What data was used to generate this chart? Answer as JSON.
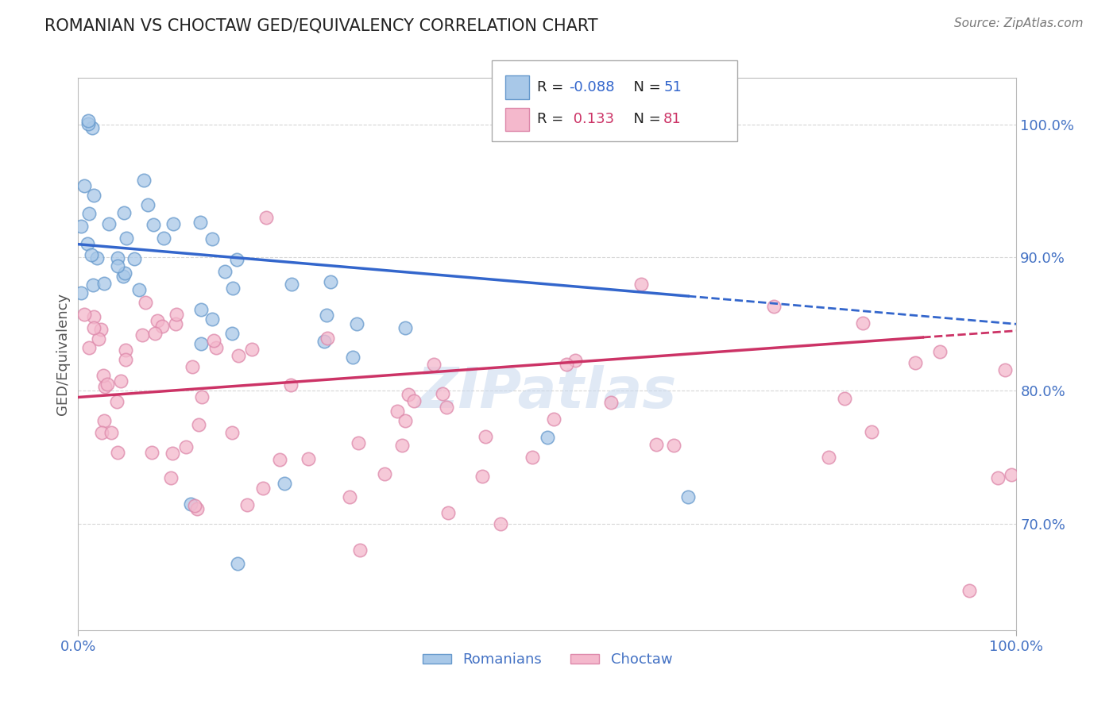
{
  "title": "ROMANIAN VS CHOCTAW GED/EQUIVALENCY CORRELATION CHART",
  "source": "Source: ZipAtlas.com",
  "ylabel": "GED/Equivalency",
  "xlim": [
    0.0,
    100.0
  ],
  "ylim": [
    62.0,
    103.5
  ],
  "yticks": [
    70.0,
    80.0,
    90.0,
    100.0
  ],
  "ytick_labels": [
    "70.0%",
    "80.0%",
    "90.0%",
    "100.0%"
  ],
  "xtick_labels": [
    "0.0%",
    "100.0%"
  ],
  "legend_r_blue": "-0.088",
  "legend_n_blue": "51",
  "legend_r_pink": "0.133",
  "legend_n_pink": "81",
  "blue_color": "#a8c8e8",
  "pink_color": "#f4b8cc",
  "blue_edge": "#6699cc",
  "pink_edge": "#dd88aa",
  "trend_blue": "#3366cc",
  "trend_pink": "#cc3366",
  "axis_label_color": "#4472c4",
  "background_color": "#ffffff",
  "grid_color": "#cccccc",
  "blue_intercept": 91.0,
  "blue_slope": -0.06,
  "blue_solid_end": 65.0,
  "pink_intercept": 79.5,
  "pink_slope": 0.05,
  "pink_solid_end": 90.0
}
